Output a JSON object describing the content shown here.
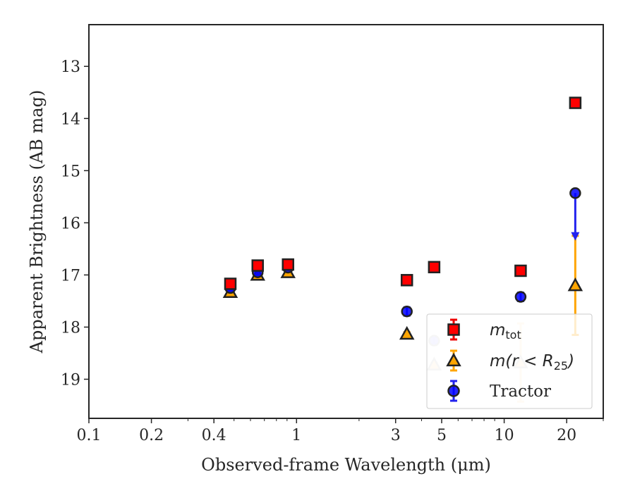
{
  "chart_data": {
    "type": "scatter",
    "xlabel": "Observed-frame Wavelength (μm)",
    "ylabel": "Apparent Brightness (AB mag)",
    "x_scale": "log",
    "xlim": [
      0.1,
      30
    ],
    "ylim": [
      19.75,
      12.2
    ],
    "y_inverted": true,
    "x_ticks": [
      0.1,
      0.2,
      0.4,
      1,
      3,
      5,
      10,
      20
    ],
    "x_tick_labels": [
      "0.1",
      "0.2",
      "0.4",
      "1",
      "3",
      "5",
      "10",
      "20"
    ],
    "y_ticks": [
      13,
      14,
      15,
      16,
      17,
      18,
      19
    ],
    "y_tick_labels": [
      "13",
      "14",
      "15",
      "16",
      "17",
      "18",
      "19"
    ],
    "legend_position": "lower-right",
    "series": [
      {
        "name": "m_tot",
        "legend_main": "m",
        "legend_sub": "tot",
        "marker": "square",
        "color": "#ff0000",
        "edge_color": "#222222",
        "points": [
          {
            "x": 0.48,
            "y": 17.17,
            "err": 0.03
          },
          {
            "x": 0.65,
            "y": 16.82,
            "err": 0.03
          },
          {
            "x": 0.91,
            "y": 16.8,
            "err": 0.03
          },
          {
            "x": 3.4,
            "y": 17.1,
            "err": 0.03
          },
          {
            "x": 4.6,
            "y": 16.85,
            "err": 0.03
          },
          {
            "x": 12.0,
            "y": 16.92,
            "err": 0.03
          },
          {
            "x": 22.0,
            "y": 13.7,
            "err": 0.03
          }
        ]
      },
      {
        "name": "m(r < R25)",
        "legend_main": "m(r < R",
        "legend_sub": "25",
        "legend_close": ")",
        "marker": "triangle",
        "color": "#ffa500",
        "edge_color": "#222222",
        "points": [
          {
            "x": 0.48,
            "y": 17.33,
            "err": 0.03
          },
          {
            "x": 0.65,
            "y": 17.0,
            "err": 0.03
          },
          {
            "x": 0.91,
            "y": 16.95,
            "err": 0.03
          },
          {
            "x": 3.4,
            "y": 18.13,
            "err": 0.03
          },
          {
            "x": 4.6,
            "y": 18.72,
            "err": 0.03,
            "faded": true
          },
          {
            "x": 12.0,
            "y": 18.68,
            "err": 0.75,
            "faded": true
          },
          {
            "x": 22.0,
            "y": 17.2,
            "err": 0.95
          }
        ]
      },
      {
        "name": "Tractor",
        "legend_main": "Tractor",
        "marker": "circle",
        "color": "#0000ff",
        "edge_color": "#222222",
        "points": [
          {
            "x": 0.48,
            "y": 17.25,
            "err": 0.05
          },
          {
            "x": 0.65,
            "y": 16.95,
            "err": 0.05
          },
          {
            "x": 0.91,
            "y": 16.86,
            "err": 0.05
          },
          {
            "x": 3.4,
            "y": 17.7,
            "err": 0.08
          },
          {
            "x": 4.6,
            "y": 18.26,
            "err": 0.06,
            "faded": true
          },
          {
            "x": 12.0,
            "y": 17.42,
            "err": 0.08
          },
          {
            "x": 22.0,
            "y": 15.43,
            "upper_limit": true,
            "limit_to": 16.3
          }
        ]
      }
    ]
  }
}
